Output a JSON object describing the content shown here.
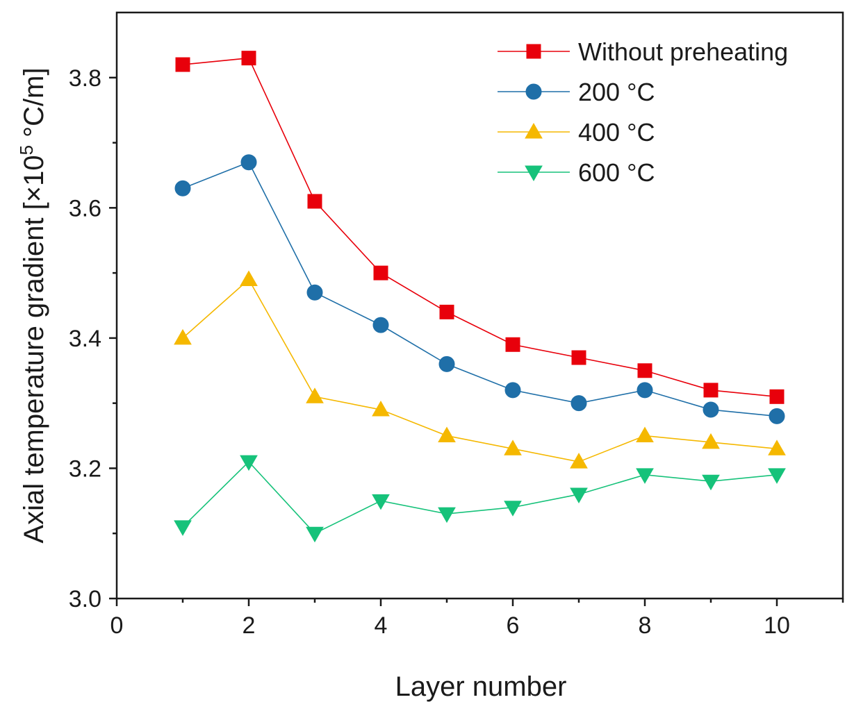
{
  "chart_data": {
    "type": "line",
    "title": "",
    "xlabel": "Layer number",
    "ylabel": {
      "main": "Axial temperature gradient [×10",
      "exponent": "5",
      "unit": " °C/m]"
    },
    "xlim": [
      0,
      11
    ],
    "ylim": [
      3.0,
      3.9
    ],
    "xticks": [
      0,
      2,
      4,
      6,
      8,
      10
    ],
    "xtick_labels": [
      "0",
      "2",
      "4",
      "6",
      "8",
      "10"
    ],
    "yticks": [
      3.0,
      3.2,
      3.4,
      3.6,
      3.8
    ],
    "ytick_labels": [
      "3.0",
      "3.2",
      "3.4",
      "3.6",
      "3.8"
    ],
    "grid": false,
    "legend_position": "top-right",
    "x": [
      1,
      2,
      3,
      4,
      5,
      6,
      7,
      8,
      9,
      10
    ],
    "series": [
      {
        "name": "Without preheating",
        "color": "#e8000b",
        "marker": "square",
        "values": [
          3.82,
          3.83,
          3.61,
          3.5,
          3.44,
          3.39,
          3.37,
          3.35,
          3.32,
          3.31
        ]
      },
      {
        "name": "200 °C",
        "color": "#1f6fa8",
        "marker": "circle",
        "values": [
          3.63,
          3.67,
          3.47,
          3.42,
          3.36,
          3.32,
          3.3,
          3.32,
          3.29,
          3.28
        ]
      },
      {
        "name": "400 °C",
        "color": "#f5b800",
        "marker": "triangle-up",
        "values": [
          3.4,
          3.49,
          3.31,
          3.29,
          3.25,
          3.23,
          3.21,
          3.25,
          3.24,
          3.23
        ]
      },
      {
        "name": "600 °C",
        "color": "#16c27a",
        "marker": "triangle-down",
        "values": [
          3.11,
          3.21,
          3.1,
          3.15,
          3.13,
          3.14,
          3.16,
          3.19,
          3.18,
          3.19
        ]
      }
    ]
  }
}
